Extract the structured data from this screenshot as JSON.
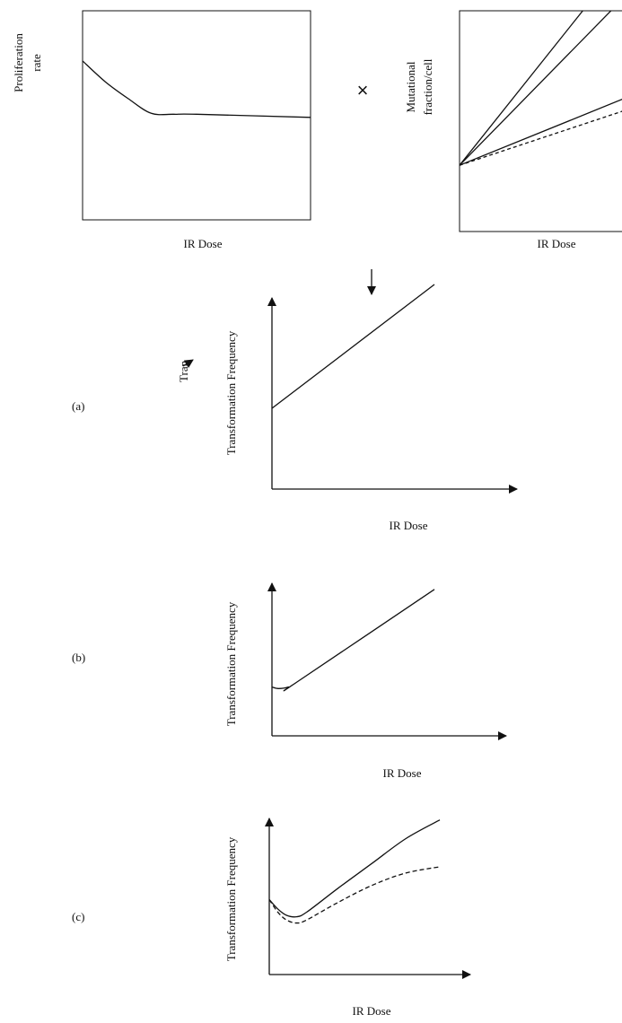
{
  "operators": {
    "times": "×",
    "down_arrow": "↓"
  },
  "stray_text": "Tran",
  "chart_data": [
    {
      "id": "proliferation",
      "type": "line",
      "ylabel_lines": [
        "Proliferation",
        "rate"
      ],
      "xlabel": "IR Dose",
      "x": [
        0,
        1,
        2,
        3,
        4,
        5,
        10
      ],
      "series": [
        {
          "style": "solid",
          "y": [
            0.76,
            0.66,
            0.58,
            0.51,
            0.505,
            0.505,
            0.49
          ]
        }
      ]
    },
    {
      "id": "mutational",
      "type": "line",
      "ylabel_lines": [
        "Mutational",
        "fraction/cell"
      ],
      "xlabel": "IR Dose",
      "x": [
        0,
        10
      ],
      "series": [
        {
          "style": "solid",
          "y": [
            0.3,
            1.32
          ]
        },
        {
          "style": "solid",
          "y": [
            0.3,
            1.13
          ]
        },
        {
          "style": "solid",
          "y": [
            0.3,
            0.63
          ]
        },
        {
          "style": "dashed",
          "y": [
            0.3,
            0.57
          ]
        }
      ]
    },
    {
      "id": "panel-a",
      "type": "line",
      "panel_label": "(a)",
      "ylabel": "Transformation Frequency",
      "xlabel": "IR Dose",
      "x": [
        0,
        10
      ],
      "series": [
        {
          "style": "solid",
          "y": [
            0.3,
            0.76
          ]
        }
      ]
    },
    {
      "id": "panel-b",
      "type": "line",
      "panel_label": "(b)",
      "ylabel": "Transformation Frequency",
      "xlabel": "IR Dose",
      "x": [
        0,
        0.4,
        1,
        1.5,
        10
      ],
      "series": [
        {
          "style": "solid",
          "y": [
            0.32,
            0.31,
            0.32,
            0.35,
            0.96
          ]
        }
      ]
    },
    {
      "id": "panel-c",
      "type": "line",
      "panel_label": "(c)",
      "ylabel": "Transformation Frequency",
      "xlabel": "IR Dose",
      "x": [
        0,
        0.5,
        1,
        1.6,
        2.2,
        4,
        6,
        8,
        10
      ],
      "series": [
        {
          "style": "solid",
          "y": [
            0.48,
            0.42,
            0.38,
            0.37,
            0.4,
            0.55,
            0.71,
            0.87,
            0.99
          ]
        },
        {
          "style": "dashed",
          "y": [
            0.48,
            0.4,
            0.35,
            0.33,
            0.35,
            0.46,
            0.57,
            0.65,
            0.69
          ]
        }
      ]
    }
  ]
}
